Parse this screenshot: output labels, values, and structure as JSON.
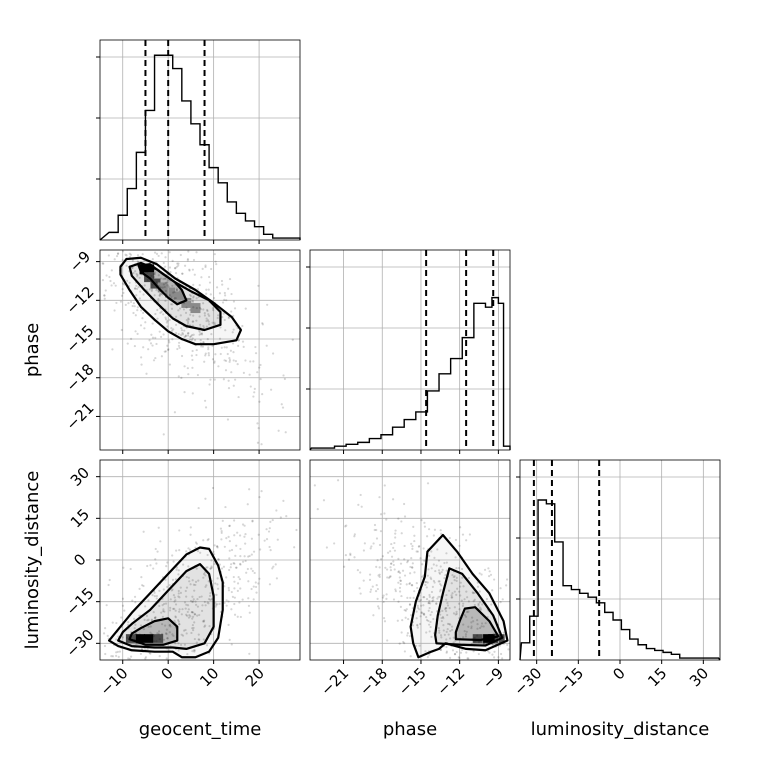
{
  "chart_data": {
    "type": "corner",
    "parameters": [
      "geocent_time",
      "phase",
      "luminosity_distance"
    ],
    "axis_labels": {
      "x": [
        "geocent_time",
        "phase",
        "luminosity_distance"
      ],
      "y": [
        "phase",
        "luminosity_distance"
      ]
    },
    "ranges": {
      "geocent_time": [
        -15,
        29
      ],
      "phase": [
        -23.6,
        -8.1
      ],
      "luminosity_distance": [
        -36,
        36
      ]
    },
    "ticks": {
      "geocent_time": [
        "−10",
        "0",
        "10",
        "20"
      ],
      "phase": [
        "−21",
        "−18",
        "−15",
        "−12",
        "−9"
      ],
      "luminosity_distance": [
        "−30",
        "−15",
        "0",
        "15",
        "30"
      ]
    },
    "tick_values": {
      "geocent_time": [
        -10,
        0,
        10,
        20
      ],
      "phase": [
        -21,
        -18,
        -15,
        -12,
        -9
      ],
      "luminosity_distance": [
        -30,
        -15,
        0,
        15,
        30
      ]
    },
    "histograms": {
      "geocent_time": {
        "edges": [
          -13,
          -11,
          -9,
          -7,
          -5,
          -3,
          -1,
          1,
          3,
          5,
          7,
          9,
          11,
          13,
          15,
          17,
          19,
          21,
          23,
          25,
          29
        ],
        "counts": [
          4,
          13,
          27,
          46,
          68,
          97,
          97,
          90,
          73,
          61,
          50,
          38,
          30,
          20,
          14,
          10,
          7,
          3,
          1,
          1
        ]
      },
      "phase": {
        "edges": [
          -23.5,
          -22.6,
          -21.7,
          -20.8,
          -19.9,
          -19.0,
          -18.1,
          -17.2,
          -16.3,
          -15.4,
          -14.5,
          -13.6,
          -12.7,
          -11.8,
          -10.9,
          -10.0,
          -9.5,
          -9.0,
          -8.6
        ],
        "counts": [
          1,
          1,
          2,
          3,
          4,
          6,
          8,
          12,
          16,
          20,
          31,
          40,
          48,
          59,
          77,
          75,
          80,
          77
        ],
        "bar_tail": [
          {
            "x": [
              -8.6,
              -8.1
            ],
            "count": 2
          }
        ]
      },
      "luminosity_distance": {
        "edges": [
          -35.5,
          -32.5,
          -29.5,
          -26.5,
          -23.5,
          -20.5,
          -17.5,
          -14.5,
          -11.5,
          -8.5,
          -5.5,
          -2.5,
          0.5,
          3.5,
          6.5,
          9.5,
          12.5,
          15.5,
          18.5,
          21.5,
          24.5,
          35.5
        ],
        "counts": [
          9,
          23,
          84,
          82,
          62,
          39,
          37,
          35,
          33,
          30,
          25,
          21,
          16,
          11,
          8,
          6,
          5,
          4,
          3,
          1,
          1
        ]
      }
    },
    "quantiles": {
      "geocent_time": [
        -5,
        0,
        8
      ],
      "phase": [
        -14.6,
        -11.5,
        -9.4
      ],
      "luminosity_distance": [
        -31,
        -24.5,
        -7.5
      ]
    },
    "contours": {
      "geocent_time|phase": [
        [
          [
            -10.5,
            -9.4
          ],
          [
            -9.2,
            -8.8
          ],
          [
            -6,
            -8.7
          ],
          [
            -2.5,
            -9.2
          ],
          [
            1.5,
            -10.3
          ],
          [
            6,
            -11.2
          ],
          [
            10,
            -12.2
          ],
          [
            14,
            -13.3
          ],
          [
            16,
            -14.3
          ],
          [
            15,
            -15.1
          ],
          [
            10,
            -15.4
          ],
          [
            6,
            -15.4
          ],
          [
            3,
            -15
          ],
          [
            0,
            -14.4
          ],
          [
            -3,
            -13.5
          ],
          [
            -6,
            -12.5
          ],
          [
            -8.5,
            -11.2
          ],
          [
            -10.5,
            -10
          ]
        ],
        [
          [
            -8.5,
            -9.4
          ],
          [
            -6,
            -9.1
          ],
          [
            -2.5,
            -9.6
          ],
          [
            1.5,
            -10.6
          ],
          [
            5,
            -11.3
          ],
          [
            9,
            -12
          ],
          [
            11.5,
            -12.9
          ],
          [
            11.5,
            -13.9
          ],
          [
            8,
            -14.3
          ],
          [
            4,
            -14
          ],
          [
            1,
            -13.4
          ],
          [
            -2.5,
            -12.2
          ],
          [
            -5.5,
            -11.1
          ],
          [
            -8,
            -10.1
          ]
        ],
        [
          [
            -6.5,
            -9.3
          ],
          [
            -4,
            -9.2
          ],
          [
            -1,
            -10
          ],
          [
            1.5,
            -10.6
          ],
          [
            3,
            -11.2
          ],
          [
            4,
            -12
          ],
          [
            2,
            -12.3
          ],
          [
            0,
            -11.8
          ],
          [
            -2,
            -11.1
          ],
          [
            -4,
            -10.3
          ],
          [
            -6,
            -9.8
          ]
        ]
      ],
      "geocent_time|luminosity_distance": [
        [
          [
            -13,
            -29
          ],
          [
            -11,
            -31
          ],
          [
            -8,
            -32.5
          ],
          [
            -3,
            -33
          ],
          [
            1,
            -33
          ],
          [
            3,
            -35
          ],
          [
            6,
            -35
          ],
          [
            9,
            -33
          ],
          [
            11,
            -28
          ],
          [
            12,
            -18
          ],
          [
            12,
            -8
          ],
          [
            11,
            -2
          ],
          [
            9,
            4
          ],
          [
            7,
            4.5
          ],
          [
            4,
            2
          ],
          [
            0,
            -5
          ],
          [
            -4,
            -12
          ],
          [
            -8,
            -19
          ],
          [
            -11,
            -25
          ]
        ],
        [
          [
            -11,
            -29
          ],
          [
            -8,
            -31
          ],
          [
            -3,
            -31.5
          ],
          [
            1,
            -31.5
          ],
          [
            4,
            -32
          ],
          [
            8,
            -30
          ],
          [
            10,
            -24
          ],
          [
            10,
            -13
          ],
          [
            9,
            -5
          ],
          [
            7,
            -1.5
          ],
          [
            4,
            -4
          ],
          [
            0,
            -11
          ],
          [
            -4,
            -18
          ],
          [
            -8,
            -23
          ],
          [
            -10,
            -26
          ]
        ],
        [
          [
            -8.5,
            -28.5
          ],
          [
            -5,
            -30.5
          ],
          [
            -1,
            -30.5
          ],
          [
            2,
            -29
          ],
          [
            2,
            -24
          ],
          [
            0,
            -21
          ],
          [
            -3,
            -22
          ],
          [
            -6,
            -24.5
          ],
          [
            -8,
            -26.5
          ]
        ]
      ],
      "phase|luminosity_distance": [
        [
          [
            -15.2,
            -35
          ],
          [
            -14.2,
            -33
          ],
          [
            -13.6,
            -32
          ],
          [
            -13.1,
            -30
          ],
          [
            -11.5,
            -32
          ],
          [
            -10,
            -32.5
          ],
          [
            -8.3,
            -29
          ],
          [
            -8.6,
            -22
          ],
          [
            -9.7,
            -12
          ],
          [
            -11,
            -5
          ],
          [
            -12.2,
            3
          ],
          [
            -13.3,
            9
          ],
          [
            -14.5,
            3
          ],
          [
            -14.7,
            -6
          ],
          [
            -15.4,
            -15
          ],
          [
            -15.8,
            -24
          ],
          [
            -15.6,
            -30
          ]
        ],
        [
          [
            -13.8,
            -30
          ],
          [
            -12,
            -30.5
          ],
          [
            -10,
            -30.8
          ],
          [
            -8.7,
            -28
          ],
          [
            -9.4,
            -20
          ],
          [
            -10.6,
            -12
          ],
          [
            -11.8,
            -5
          ],
          [
            -12.8,
            -3
          ],
          [
            -13.3,
            -12
          ],
          [
            -13.7,
            -20
          ],
          [
            -13.9,
            -27
          ]
        ],
        [
          [
            -12.3,
            -28.5
          ],
          [
            -10.4,
            -28.8
          ],
          [
            -9,
            -27.5
          ],
          [
            -9.7,
            -22
          ],
          [
            -10.8,
            -17
          ],
          [
            -11.6,
            -17.5
          ],
          [
            -12,
            -22
          ],
          [
            -12.3,
            -26
          ]
        ]
      ]
    },
    "densest_cells": {
      "geocent_time|phase": [
        [
          -5.2,
          -9.6
        ],
        [
          -4.2,
          -9.6
        ],
        [
          -4.2,
          -10.2
        ],
        [
          -2.8,
          -10.7
        ],
        [
          -1.2,
          -11.0
        ],
        [
          0.4,
          -11.4
        ],
        [
          2.4,
          -11.7
        ],
        [
          4.0,
          -12.2
        ],
        [
          6.0,
          -12.6
        ]
      ],
      "geocent_time|luminosity_distance": [
        [
          -6.2,
          -28.5
        ],
        [
          -4.2,
          -28.5
        ],
        [
          -8.2,
          -28.5
        ],
        [
          -2.2,
          -28.5
        ]
      ],
      "phase|luminosity_distance": [
        [
          -9.4,
          -28.5
        ],
        [
          -9.8,
          -28.5
        ],
        [
          -10.6,
          -28.5
        ],
        [
          -8.9,
          -28.5
        ]
      ]
    }
  }
}
